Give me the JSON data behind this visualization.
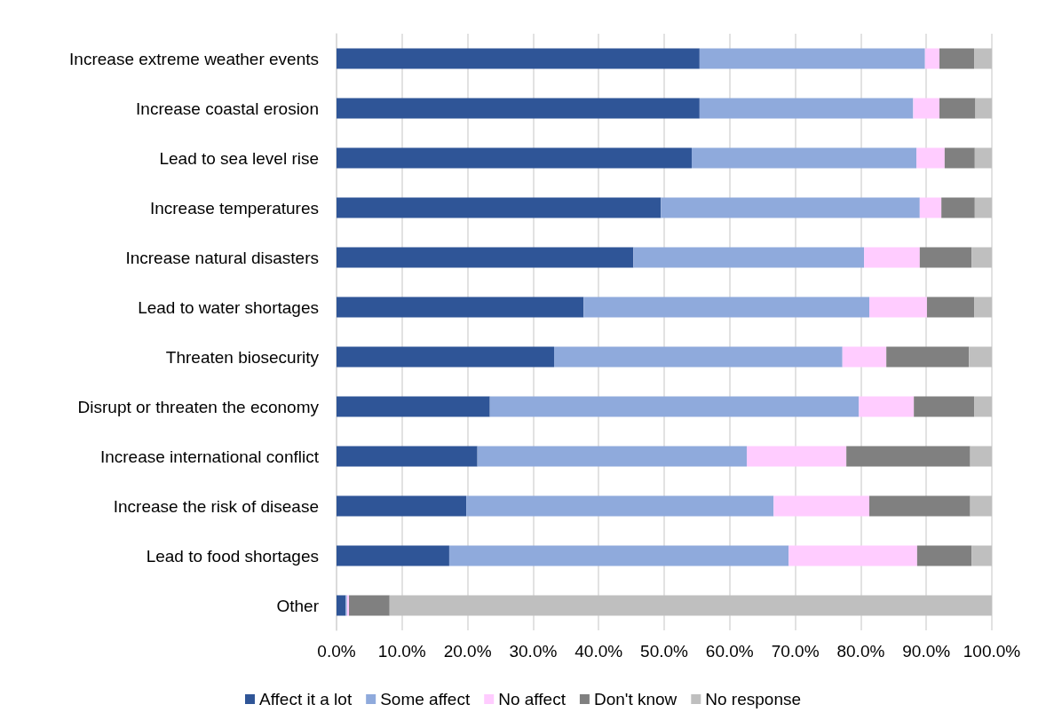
{
  "chart_data": {
    "type": "bar",
    "orientation": "horizontal",
    "stacked": true,
    "categories": [
      "Increase extreme weather events",
      "Increase coastal erosion",
      "Lead to sea level rise",
      "Increase temperatures",
      "Increase natural disasters",
      "Lead to water shortages",
      "Threaten biosecurity",
      "Disrupt or threaten the economy",
      "Increase international conflict",
      "Increase the risk of disease",
      "Lead to food shortages",
      "Other"
    ],
    "series": [
      {
        "name": "Affect it a lot",
        "color": "#2f5597",
        "values": [
          55.4,
          55.4,
          54.2,
          49.5,
          45.3,
          37.7,
          33.2,
          23.4,
          21.5,
          19.8,
          17.2,
          1.4
        ]
      },
      {
        "name": "Some affect",
        "color": "#8faadc",
        "values": [
          34.4,
          32.6,
          34.3,
          39.5,
          35.2,
          43.6,
          44.0,
          56.3,
          41.1,
          46.9,
          51.8,
          0.2
        ]
      },
      {
        "name": "No affect",
        "color": "#ffccff",
        "values": [
          2.2,
          4.0,
          4.3,
          3.3,
          8.5,
          8.8,
          6.7,
          8.4,
          15.2,
          14.6,
          19.6,
          0.3
        ]
      },
      {
        "name": "Don't know",
        "color": "#808080",
        "values": [
          5.3,
          5.5,
          4.6,
          5.1,
          7.9,
          7.2,
          12.6,
          9.2,
          18.9,
          15.4,
          8.3,
          6.2
        ]
      },
      {
        "name": "No response",
        "color": "#bfbfbf",
        "values": [
          2.7,
          2.5,
          2.6,
          2.6,
          3.1,
          2.7,
          3.5,
          2.7,
          3.3,
          3.3,
          3.1,
          91.9
        ]
      }
    ],
    "xlim": [
      0,
      100
    ],
    "xticks": [
      {
        "value": 0,
        "label": "0.0%"
      },
      {
        "value": 10,
        "label": "10.0%"
      },
      {
        "value": 20,
        "label": "20.0%"
      },
      {
        "value": 30,
        "label": "30.0%"
      },
      {
        "value": 40,
        "label": "40.0%"
      },
      {
        "value": 50,
        "label": "50.0%"
      },
      {
        "value": 60,
        "label": "60.0%"
      },
      {
        "value": 70,
        "label": "70.0%"
      },
      {
        "value": 80,
        "label": "80.0%"
      },
      {
        "value": 90,
        "label": "90.0%"
      },
      {
        "value": 100,
        "label": "100.0%"
      }
    ],
    "grid": "x",
    "legend": "bottom"
  }
}
